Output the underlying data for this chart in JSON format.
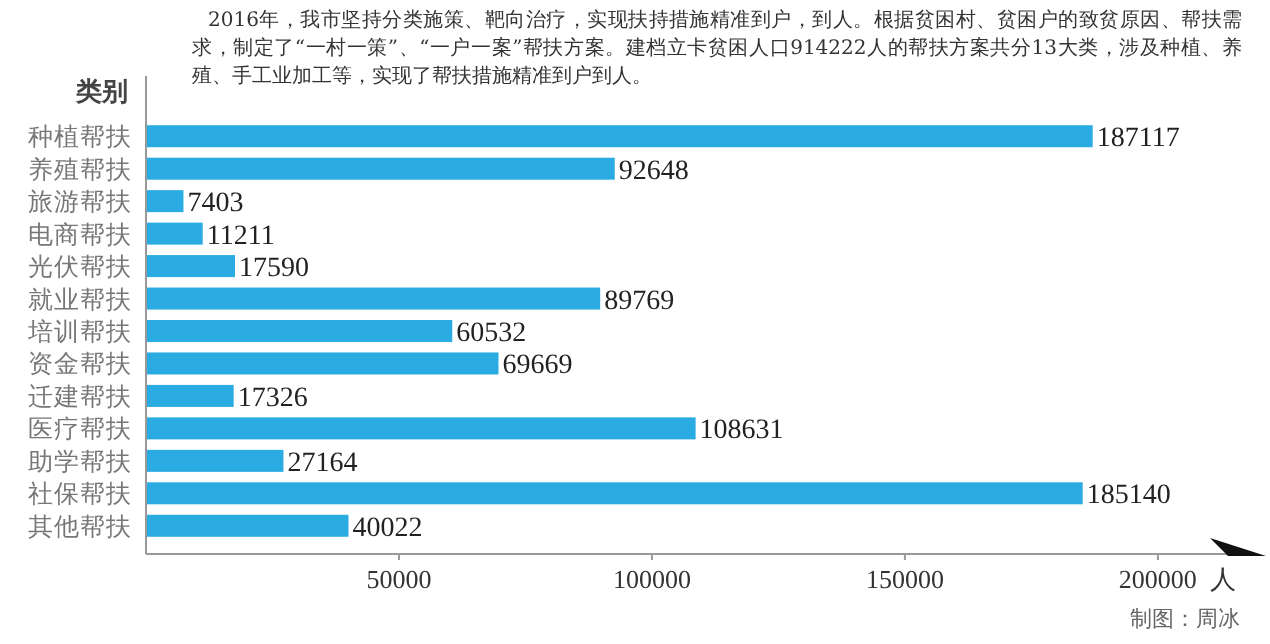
{
  "chart_data": {
    "type": "bar",
    "orientation": "horizontal",
    "title": "2016年，我市坚持分类施策、靶向治疗，实现扶持措施精准到户，到人。根据贫困村、贫困户的致贫原因、帮扶需求，制定了“一村一策”、“一户一案”帮扶方案。建档立卡贫困人口914222人的帮扶方案共分13大类，涉及种植、养殖、手工业加工等，实现了帮扶措施精准到户到人。",
    "ylabel": "类别",
    "xlabel": "人",
    "categories": [
      "种植帮扶",
      "养殖帮扶",
      "旅游帮扶",
      "电商帮扶",
      "光伏帮扶",
      "就业帮扶",
      "培训帮扶",
      "资金帮扶",
      "迁建帮扶",
      "医疗帮扶",
      "助学帮扶",
      "社保帮扶",
      "其他帮扶"
    ],
    "values": [
      187117,
      92648,
      7403,
      11211,
      17590,
      89769,
      60532,
      69669,
      17326,
      108631,
      27164,
      185140,
      40022
    ],
    "color": "#2aabe2",
    "data_labels": true,
    "grid": false,
    "xlim": [
      0,
      219000
    ],
    "xticks": [
      50000,
      100000,
      150000,
      200000
    ],
    "annotations": [
      "制图：周冰"
    ]
  }
}
